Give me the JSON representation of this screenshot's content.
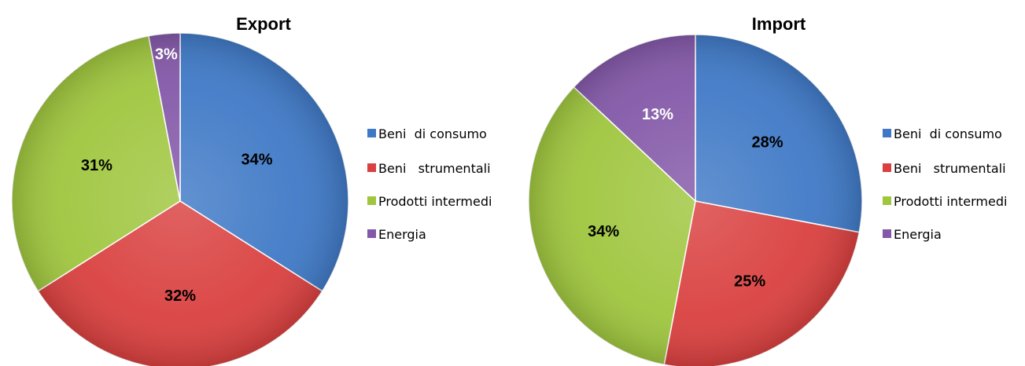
{
  "chart_data": [
    {
      "type": "pie",
      "title": "Export",
      "categories": [
        "Beni  di consumo",
        "Beni   strumentali",
        "Prodotti intermedi",
        "Energia"
      ],
      "values": [
        34,
        32,
        31,
        3
      ],
      "labels": [
        "34%",
        "32%",
        "31%",
        "3%"
      ],
      "legend": "right",
      "colors": [
        "#3f79c6",
        "#d9403f",
        "#9fc63e",
        "#8358a8"
      ]
    },
    {
      "type": "pie",
      "title": "Import",
      "categories": [
        "Beni  di consumo",
        "Beni   strumentali",
        "Prodotti intermedi",
        "Energia"
      ],
      "values": [
        28,
        25,
        34,
        13
      ],
      "labels": [
        "28%",
        "25%",
        "34%",
        "13%"
      ],
      "legend": "right",
      "colors": [
        "#3f79c6",
        "#d9403f",
        "#9fc63e",
        "#8358a8"
      ]
    }
  ]
}
